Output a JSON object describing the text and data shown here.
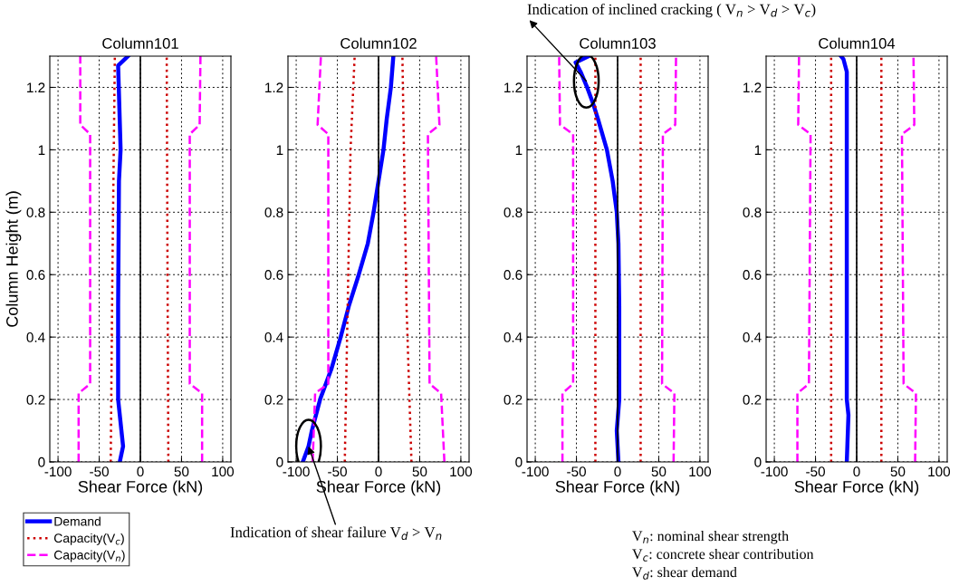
{
  "chart_data": [
    {
      "type": "line",
      "title": "Column101",
      "xlabel": "Shear Force (kN)",
      "ylabel": "Column Height (m)",
      "xlim": [
        -110,
        110
      ],
      "xticks": [
        -100,
        -50,
        0,
        50,
        100
      ],
      "ylim": [
        0,
        1.3
      ],
      "yticks": [
        0,
        0.2,
        0.4,
        0.6,
        0.8,
        1,
        1.2
      ],
      "grid": true,
      "legend": "bottom left",
      "ref_lines": [
        {
          "axis": "x",
          "value": 0,
          "color": "#000000"
        }
      ],
      "series": [
        {
          "name": "Demand",
          "color": "#0000ff",
          "line_style": "solid",
          "x": [
            -25,
            -21,
            -27,
            -27,
            -26,
            -24,
            -27,
            -15
          ],
          "values": [
            0,
            0.05,
            0.2,
            0.5,
            0.9,
            1.0,
            1.27,
            1.3
          ]
        },
        {
          "name": "Capacity(V$_{c}$)",
          "color": "#cc0000",
          "line_style": "dotted",
          "x": [
            -36,
            -34,
            -31
          ],
          "values": [
            0,
            0.6,
            1.3
          ]
        },
        {
          "color": "#cc0000",
          "line_style": "dotted",
          "x": [
            34,
            33,
            32
          ],
          "values": [
            0,
            0.6,
            1.3
          ]
        },
        {
          "name": "Capacity(V$_{n}$)",
          "color": "#ff00ff",
          "line_style": "dashed",
          "x": [
            -75,
            -75,
            -61,
            -61,
            -73,
            -73
          ],
          "values": [
            0,
            0.22,
            0.25,
            1.05,
            1.08,
            1.3
          ]
        },
        {
          "color": "#ff00ff",
          "line_style": "dashed",
          "x": [
            75,
            75,
            60,
            60,
            72,
            73
          ],
          "values": [
            0,
            0.22,
            0.25,
            1.05,
            1.08,
            1.3
          ]
        }
      ]
    },
    {
      "type": "line",
      "title": "Column102",
      "xlabel": "Shear Force (kN)",
      "xlim": [
        -110,
        110
      ],
      "xticks": [
        -100,
        -50,
        0,
        50,
        100
      ],
      "ylim": [
        0,
        1.3
      ],
      "yticks": [
        0,
        0.2,
        0.4,
        0.6,
        0.8,
        1,
        1.2
      ],
      "grid": true,
      "ref_lines": [
        {
          "axis": "x",
          "value": 0,
          "color": "#000000"
        }
      ],
      "annotations": [
        {
          "text": "Indication of shear failure V$_{d}$ > V$_{n}$",
          "x": -85,
          "y": 0.05
        }
      ],
      "series": [
        {
          "color": "#0000ff",
          "line_style": "solid",
          "x": [
            -92,
            -85,
            -81,
            -71,
            -57,
            -46,
            -36,
            -24,
            -13,
            -6,
            0,
            6,
            10,
            15,
            18
          ],
          "values": [
            0,
            0.05,
            0.1,
            0.2,
            0.3,
            0.4,
            0.5,
            0.6,
            0.7,
            0.8,
            0.9,
            1.0,
            1.1,
            1.2,
            1.3
          ]
        },
        {
          "color": "#cc0000",
          "line_style": "dotted",
          "x": [
            -41,
            -34,
            -29
          ],
          "values": [
            0,
            1.0,
            1.3
          ]
        },
        {
          "color": "#cc0000",
          "line_style": "dotted",
          "x": [
            40,
            34,
            29
          ],
          "values": [
            0,
            0.5,
            1.3
          ]
        },
        {
          "color": "#ff00ff",
          "line_style": "dashed",
          "x": [
            -80,
            -77,
            -61,
            -61,
            -74,
            -70
          ],
          "values": [
            0,
            0.22,
            0.25,
            1.05,
            1.08,
            1.3
          ]
        },
        {
          "color": "#ff00ff",
          "line_style": "dashed",
          "x": [
            80,
            76,
            62,
            60,
            74,
            70
          ],
          "values": [
            0,
            0.22,
            0.25,
            1.05,
            1.08,
            1.3
          ]
        }
      ]
    },
    {
      "type": "line",
      "title": "Column103",
      "xlabel": "Shear Force (kN)",
      "xlim": [
        -110,
        110
      ],
      "xticks": [
        -100,
        -50,
        0,
        50,
        100
      ],
      "ylim": [
        0,
        1.3
      ],
      "yticks": [
        0,
        0.2,
        0.4,
        0.6,
        0.8,
        1,
        1.2
      ],
      "grid": true,
      "ref_lines": [
        {
          "axis": "x",
          "value": 0,
          "color": "#000000"
        }
      ],
      "annotations": [
        {
          "text": "Indication of inclined cracking ( V$_{n}$ > V$_{d}$ > V$_{c}$)",
          "x": -38,
          "y": 1.22
        },
        "V$_{n}$: nominal shear strength",
        "V$_{c}$: concrete shear contribution",
        "V$_{d}$: shear demand"
      ],
      "series": [
        {
          "color": "#0000ff",
          "line_style": "solid",
          "x": [
            1,
            -1,
            2,
            2,
            1,
            -1,
            -6,
            -13,
            -24,
            -30,
            -37,
            -45,
            -51,
            -35
          ],
          "values": [
            0,
            0.1,
            0.2,
            0.5,
            0.7,
            0.8,
            0.9,
            1.0,
            1.1,
            1.15,
            1.2,
            1.25,
            1.28,
            1.3
          ]
        },
        {
          "color": "#cc0000",
          "line_style": "dotted",
          "x": [
            -27,
            -27
          ],
          "values": [
            0,
            1.3
          ]
        },
        {
          "color": "#cc0000",
          "line_style": "dotted",
          "x": [
            28,
            28
          ],
          "values": [
            0,
            1.3
          ]
        },
        {
          "color": "#ff00ff",
          "line_style": "dashed",
          "x": [
            -67,
            -67,
            -54,
            -54,
            -70,
            -71
          ],
          "values": [
            0,
            0.22,
            0.25,
            1.05,
            1.08,
            1.3
          ]
        },
        {
          "color": "#ff00ff",
          "line_style": "dashed",
          "x": [
            68,
            69,
            54,
            55,
            70,
            71
          ],
          "values": [
            0,
            0.22,
            0.25,
            1.05,
            1.08,
            1.3
          ]
        }
      ]
    },
    {
      "type": "line",
      "title": "Column104",
      "xlabel": "Shear Force (kN)",
      "xlim": [
        -110,
        110
      ],
      "xticks": [
        -100,
        -50,
        0,
        50,
        100
      ],
      "ylim": [
        0,
        1.3
      ],
      "yticks": [
        0,
        0.2,
        0.4,
        0.6,
        0.8,
        1,
        1.2
      ],
      "grid": true,
      "ref_lines": [
        {
          "axis": "x",
          "value": 0,
          "color": "#000000"
        }
      ],
      "series": [
        {
          "color": "#0000ff",
          "line_style": "solid",
          "x": [
            -12,
            -10,
            -12,
            -12,
            -16,
            -19
          ],
          "values": [
            0,
            0.15,
            0.2,
            1.25,
            1.29,
            1.3
          ]
        },
        {
          "color": "#cc0000",
          "line_style": "dotted",
          "x": [
            -31,
            -31
          ],
          "values": [
            0,
            1.3
          ]
        },
        {
          "color": "#cc0000",
          "line_style": "dotted",
          "x": [
            30,
            30
          ],
          "values": [
            0,
            1.3
          ]
        },
        {
          "color": "#ff00ff",
          "line_style": "dashed",
          "x": [
            -72,
            -72,
            -58,
            -56,
            -71,
            -70
          ],
          "values": [
            0,
            0.22,
            0.25,
            1.05,
            1.08,
            1.3
          ]
        },
        {
          "color": "#ff00ff",
          "line_style": "dashed",
          "x": [
            71,
            72,
            57,
            55,
            70,
            69
          ],
          "values": [
            0,
            0.22,
            0.25,
            1.05,
            1.08,
            1.3
          ]
        }
      ]
    }
  ]
}
